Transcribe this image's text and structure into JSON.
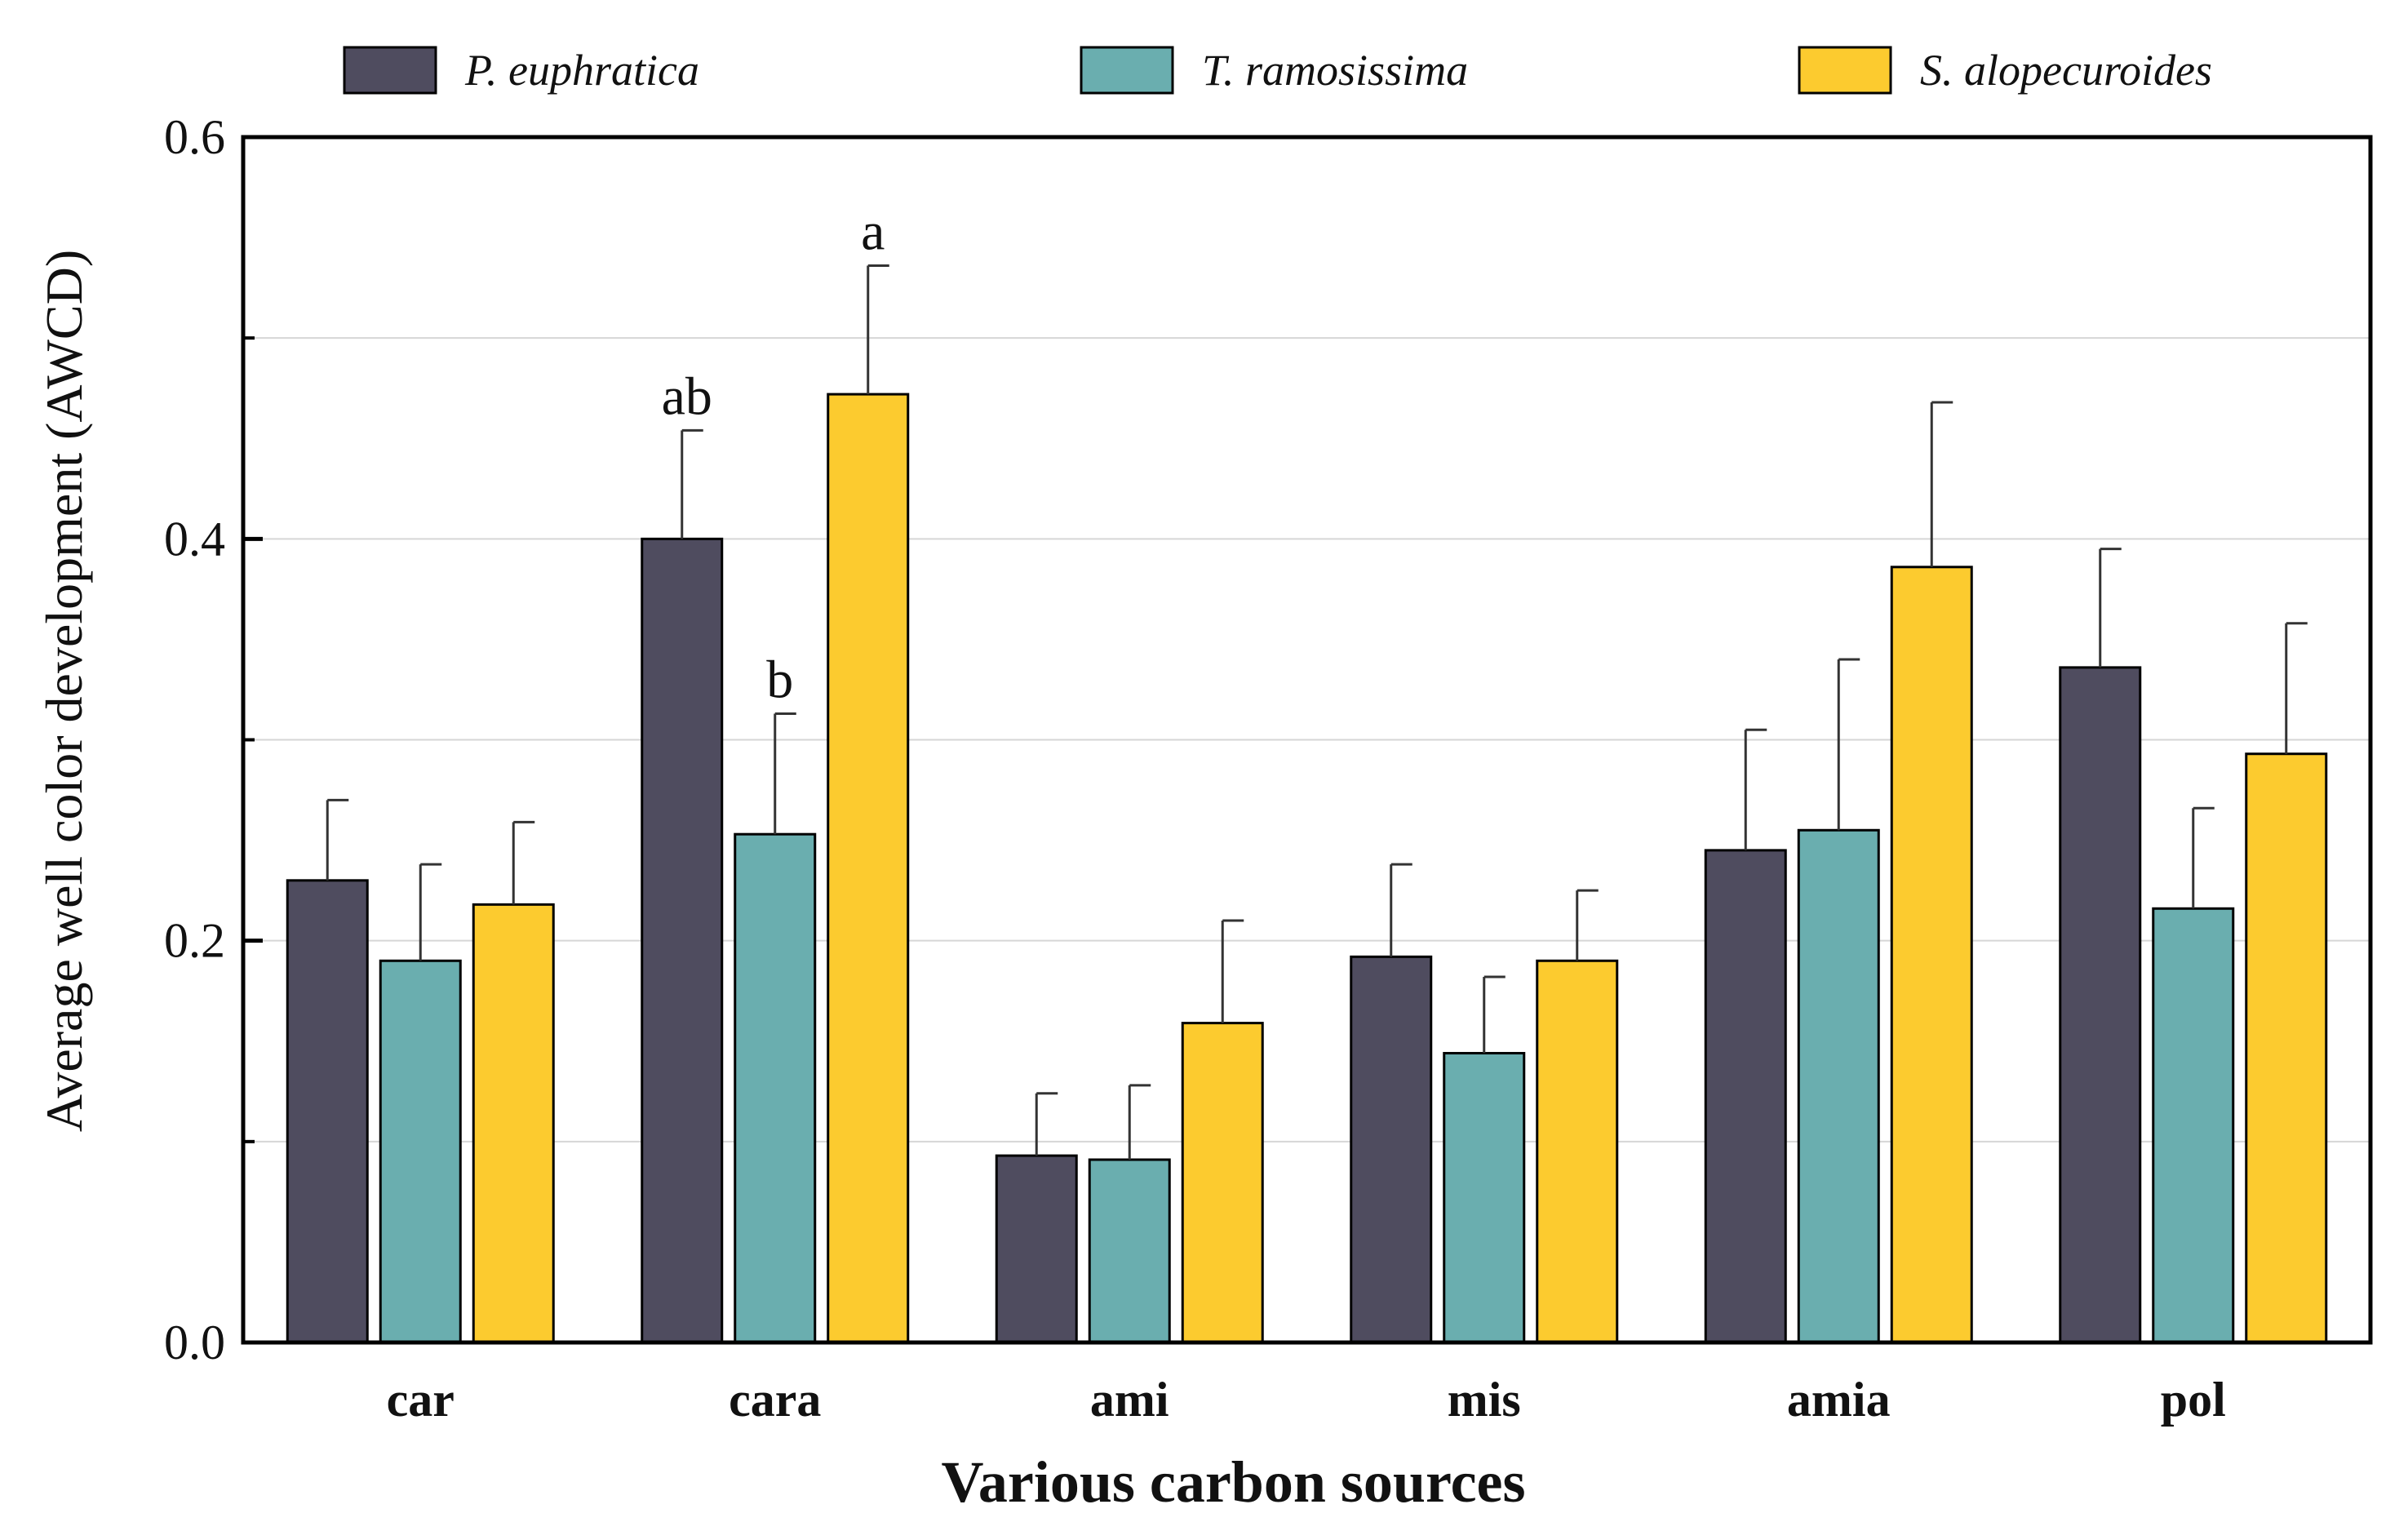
{
  "chart_data": {
    "type": "bar",
    "title": "",
    "xlabel": "Various carbon sources",
    "ylabel": "Average well color development (AWCD)",
    "ylim": [
      0,
      0.6
    ],
    "yticks": [
      0.0,
      0.2,
      0.4,
      0.6
    ],
    "ytick_labels": [
      "0.0",
      "0.2",
      "0.4",
      "0.6"
    ],
    "minor_yticks": [
      0.1,
      0.3,
      0.5
    ],
    "grid": true,
    "legend_position": "top",
    "categories": [
      "car",
      "cara",
      "ami",
      "mis",
      "amia",
      "pol"
    ],
    "series": [
      {
        "name": "P. euphratica",
        "color": "#4f4c5f",
        "values": [
          0.23,
          0.4,
          0.093,
          0.192,
          0.245,
          0.336
        ],
        "errors": [
          0.04,
          0.054,
          0.031,
          0.046,
          0.06,
          0.059
        ]
      },
      {
        "name": "T. ramosissima",
        "color": "#6aaeaf",
        "values": [
          0.19,
          0.253,
          0.091,
          0.144,
          0.255,
          0.216
        ],
        "errors": [
          0.048,
          0.06,
          0.037,
          0.038,
          0.085,
          0.05
        ]
      },
      {
        "name": "S. alopecuroides",
        "color": "#fccb2f",
        "values": [
          0.218,
          0.472,
          0.159,
          0.19,
          0.386,
          0.293
        ],
        "errors": [
          0.041,
          0.064,
          0.051,
          0.035,
          0.082,
          0.065
        ]
      }
    ],
    "annotations": [
      {
        "category": "cara",
        "series": 0,
        "text": "ab"
      },
      {
        "category": "cara",
        "series": 1,
        "text": "b"
      },
      {
        "category": "cara",
        "series": 2,
        "text": "a"
      }
    ]
  }
}
